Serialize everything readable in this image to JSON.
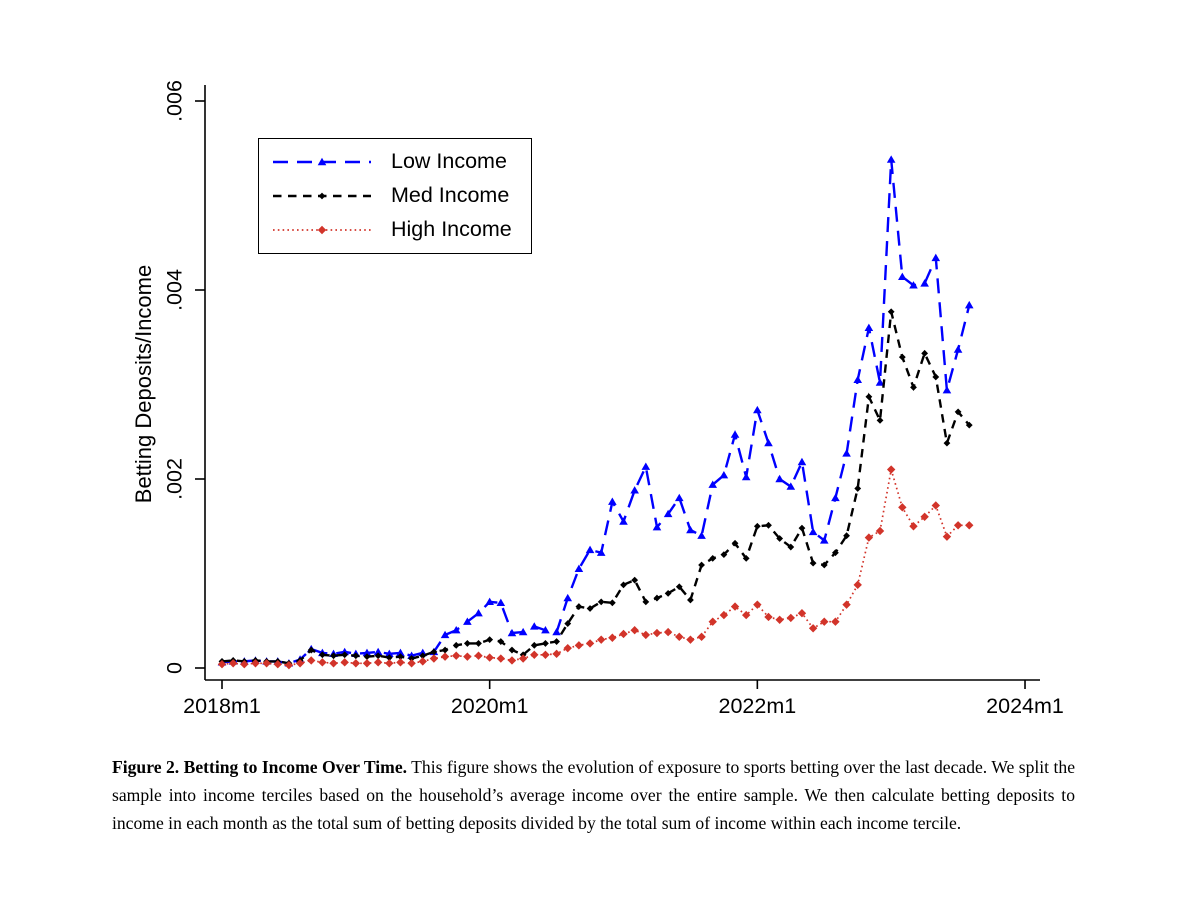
{
  "figure": {
    "y_axis_title": "Betting Deposits/Income",
    "background": "#ffffff",
    "axis_color": "#000000"
  },
  "chart_data": {
    "type": "line",
    "title": "",
    "xlabel": "",
    "ylabel": "Betting Deposits/Income",
    "x_unit": "month",
    "x_start": "2018m1",
    "x_end": "2023m8",
    "ylim": [
      0,
      0.006
    ],
    "grid": false,
    "legend_position": "top-left-inside",
    "x_ticks": [
      {
        "label": "2018m1",
        "month": 0
      },
      {
        "label": "2020m1",
        "month": 24
      },
      {
        "label": "2022m1",
        "month": 48
      },
      {
        "label": "2024m1",
        "month": 72
      }
    ],
    "y_ticks": [
      {
        "label": "0",
        "value": 0
      },
      {
        "label": ".002",
        "value": 0.002
      },
      {
        "label": ".004",
        "value": 0.004
      },
      {
        "label": ".006",
        "value": 0.006
      }
    ],
    "series": [
      {
        "name": "Low Income",
        "color": "#0000ff",
        "line_style": "long-dash",
        "marker": "triangle",
        "values": [
          6e-05,
          7e-05,
          7e-05,
          8e-05,
          7e-05,
          7e-05,
          5e-05,
          9e-05,
          0.0002,
          0.00016,
          0.00015,
          0.00017,
          0.00015,
          0.00016,
          0.00017,
          0.00015,
          0.00016,
          0.00013,
          0.00016,
          0.00017,
          0.00035,
          0.0004,
          0.00049,
          0.00058,
          0.0007,
          0.00069,
          0.00037,
          0.00038,
          0.00044,
          0.0004,
          0.00038,
          0.00074,
          0.00105,
          0.00125,
          0.00122,
          0.00176,
          0.00155,
          0.00188,
          0.00213,
          0.00149,
          0.00163,
          0.0018,
          0.00146,
          0.0014,
          0.00194,
          0.00204,
          0.00247,
          0.00202,
          0.00273,
          0.00238,
          0.002,
          0.00192,
          0.00218,
          0.00144,
          0.00135,
          0.0018,
          0.00227,
          0.00305,
          0.0036,
          0.00302,
          0.00538,
          0.00414,
          0.00405,
          0.00407,
          0.00434,
          0.00294,
          0.00337,
          0.00384
        ]
      },
      {
        "name": "Med Income",
        "color": "#000000",
        "line_style": "dash",
        "marker": "diamond-small",
        "values": [
          7e-05,
          8e-05,
          7e-05,
          8e-05,
          7e-05,
          7e-05,
          5e-05,
          8e-05,
          0.00019,
          0.00014,
          0.00013,
          0.00014,
          0.00013,
          0.00012,
          0.00013,
          0.00011,
          0.00012,
          0.0001,
          0.00013,
          0.00017,
          0.00019,
          0.00024,
          0.00026,
          0.00026,
          0.0003,
          0.00028,
          0.00019,
          0.00014,
          0.00024,
          0.00026,
          0.00028,
          0.00047,
          0.00065,
          0.00063,
          0.0007,
          0.00069,
          0.00088,
          0.00093,
          0.0007,
          0.00074,
          0.00079,
          0.00086,
          0.00072,
          0.00109,
          0.00116,
          0.0012,
          0.00132,
          0.00116,
          0.0015,
          0.00151,
          0.00137,
          0.00128,
          0.00148,
          0.00111,
          0.00109,
          0.00122,
          0.0014,
          0.0019,
          0.00287,
          0.00262,
          0.00377,
          0.00329,
          0.00297,
          0.00333,
          0.00308,
          0.00238,
          0.00271,
          0.00257
        ]
      },
      {
        "name": "High Income",
        "color": "#d2342a",
        "line_style": "dot",
        "marker": "diamond",
        "values": [
          4e-05,
          5e-05,
          4e-05,
          5e-05,
          5e-05,
          4e-05,
          3e-05,
          5e-05,
          8e-05,
          6e-05,
          5e-05,
          6e-05,
          5e-05,
          5e-05,
          6e-05,
          5e-05,
          6e-05,
          5e-05,
          7e-05,
          0.0001,
          0.00012,
          0.00013,
          0.00012,
          0.00013,
          0.00011,
          0.0001,
          8e-05,
          0.0001,
          0.00014,
          0.00014,
          0.00015,
          0.00021,
          0.00024,
          0.00026,
          0.0003,
          0.00032,
          0.00036,
          0.0004,
          0.00035,
          0.00037,
          0.00038,
          0.00033,
          0.0003,
          0.00033,
          0.00049,
          0.00056,
          0.00065,
          0.00056,
          0.00067,
          0.00054,
          0.00051,
          0.00053,
          0.00058,
          0.00042,
          0.00049,
          0.00049,
          0.00067,
          0.00088,
          0.00138,
          0.00145,
          0.0021,
          0.0017,
          0.0015,
          0.0016,
          0.00172,
          0.00139,
          0.00151,
          0.00151
        ]
      }
    ]
  },
  "caption": {
    "label_bold": "Figure 2.  Betting to Income Over Time.",
    "text": "This figure shows the evolution of exposure to sports betting over the last decade. We split the sample into income terciles based on the household’s average income over the entire sample. We then calculate betting deposits to income in each month as the total sum of betting deposits divided by the total sum of income within each income tercile."
  }
}
